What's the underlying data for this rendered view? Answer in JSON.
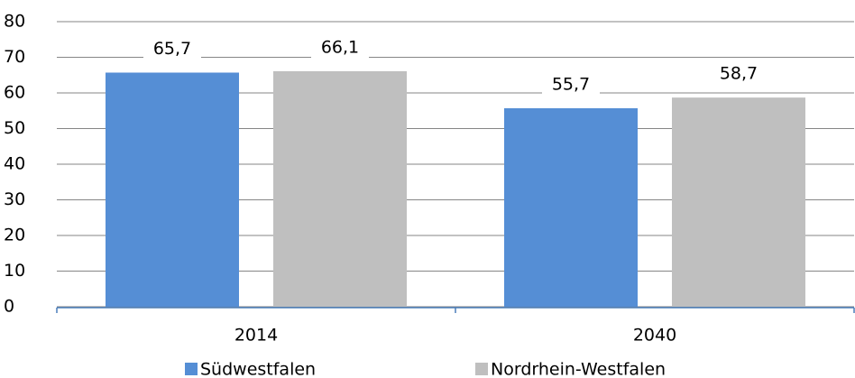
{
  "chart_data": {
    "type": "bar",
    "categories": [
      "2014",
      "2040"
    ],
    "series": [
      {
        "name": "Südwestfalen",
        "color": "#558ed5",
        "values": [
          65.7,
          55.7
        ],
        "value_labels": [
          "65,7",
          "55,7"
        ]
      },
      {
        "name": "Nordrhein-Westfalen",
        "color": "#bfbfbf",
        "values": [
          66.1,
          58.7
        ],
        "value_labels": [
          "66,1",
          "58,7"
        ]
      }
    ],
    "ylim": [
      0,
      80
    ],
    "yticks": [
      0,
      10,
      20,
      30,
      40,
      50,
      60,
      70,
      80
    ],
    "grid": true
  }
}
